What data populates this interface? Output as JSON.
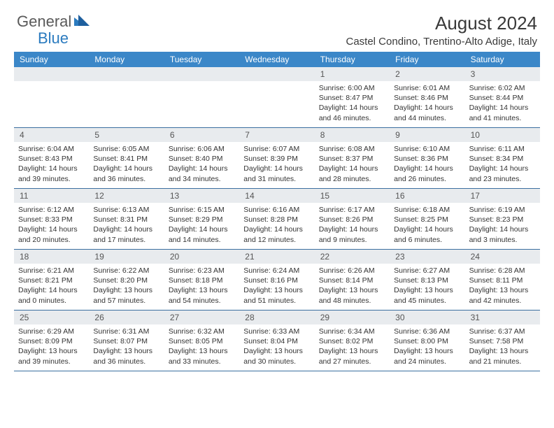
{
  "logo": {
    "text1": "General",
    "text2": "Blue"
  },
  "title": "August 2024",
  "location": "Castel Condino, Trentino-Alto Adige, Italy",
  "colors": {
    "header_bg": "#3b87c8",
    "date_bg": "#e8ebee",
    "week_border": "#3b6fa0"
  },
  "dayNames": [
    "Sunday",
    "Monday",
    "Tuesday",
    "Wednesday",
    "Thursday",
    "Friday",
    "Saturday"
  ],
  "weeks": [
    [
      null,
      null,
      null,
      null,
      {
        "d": "1",
        "sr": "Sunrise: 6:00 AM",
        "ss": "Sunset: 8:47 PM",
        "dl": "Daylight: 14 hours and 46 minutes."
      },
      {
        "d": "2",
        "sr": "Sunrise: 6:01 AM",
        "ss": "Sunset: 8:46 PM",
        "dl": "Daylight: 14 hours and 44 minutes."
      },
      {
        "d": "3",
        "sr": "Sunrise: 6:02 AM",
        "ss": "Sunset: 8:44 PM",
        "dl": "Daylight: 14 hours and 41 minutes."
      }
    ],
    [
      {
        "d": "4",
        "sr": "Sunrise: 6:04 AM",
        "ss": "Sunset: 8:43 PM",
        "dl": "Daylight: 14 hours and 39 minutes."
      },
      {
        "d": "5",
        "sr": "Sunrise: 6:05 AM",
        "ss": "Sunset: 8:41 PM",
        "dl": "Daylight: 14 hours and 36 minutes."
      },
      {
        "d": "6",
        "sr": "Sunrise: 6:06 AM",
        "ss": "Sunset: 8:40 PM",
        "dl": "Daylight: 14 hours and 34 minutes."
      },
      {
        "d": "7",
        "sr": "Sunrise: 6:07 AM",
        "ss": "Sunset: 8:39 PM",
        "dl": "Daylight: 14 hours and 31 minutes."
      },
      {
        "d": "8",
        "sr": "Sunrise: 6:08 AM",
        "ss": "Sunset: 8:37 PM",
        "dl": "Daylight: 14 hours and 28 minutes."
      },
      {
        "d": "9",
        "sr": "Sunrise: 6:10 AM",
        "ss": "Sunset: 8:36 PM",
        "dl": "Daylight: 14 hours and 26 minutes."
      },
      {
        "d": "10",
        "sr": "Sunrise: 6:11 AM",
        "ss": "Sunset: 8:34 PM",
        "dl": "Daylight: 14 hours and 23 minutes."
      }
    ],
    [
      {
        "d": "11",
        "sr": "Sunrise: 6:12 AM",
        "ss": "Sunset: 8:33 PM",
        "dl": "Daylight: 14 hours and 20 minutes."
      },
      {
        "d": "12",
        "sr": "Sunrise: 6:13 AM",
        "ss": "Sunset: 8:31 PM",
        "dl": "Daylight: 14 hours and 17 minutes."
      },
      {
        "d": "13",
        "sr": "Sunrise: 6:15 AM",
        "ss": "Sunset: 8:29 PM",
        "dl": "Daylight: 14 hours and 14 minutes."
      },
      {
        "d": "14",
        "sr": "Sunrise: 6:16 AM",
        "ss": "Sunset: 8:28 PM",
        "dl": "Daylight: 14 hours and 12 minutes."
      },
      {
        "d": "15",
        "sr": "Sunrise: 6:17 AM",
        "ss": "Sunset: 8:26 PM",
        "dl": "Daylight: 14 hours and 9 minutes."
      },
      {
        "d": "16",
        "sr": "Sunrise: 6:18 AM",
        "ss": "Sunset: 8:25 PM",
        "dl": "Daylight: 14 hours and 6 minutes."
      },
      {
        "d": "17",
        "sr": "Sunrise: 6:19 AM",
        "ss": "Sunset: 8:23 PM",
        "dl": "Daylight: 14 hours and 3 minutes."
      }
    ],
    [
      {
        "d": "18",
        "sr": "Sunrise: 6:21 AM",
        "ss": "Sunset: 8:21 PM",
        "dl": "Daylight: 14 hours and 0 minutes."
      },
      {
        "d": "19",
        "sr": "Sunrise: 6:22 AM",
        "ss": "Sunset: 8:20 PM",
        "dl": "Daylight: 13 hours and 57 minutes."
      },
      {
        "d": "20",
        "sr": "Sunrise: 6:23 AM",
        "ss": "Sunset: 8:18 PM",
        "dl": "Daylight: 13 hours and 54 minutes."
      },
      {
        "d": "21",
        "sr": "Sunrise: 6:24 AM",
        "ss": "Sunset: 8:16 PM",
        "dl": "Daylight: 13 hours and 51 minutes."
      },
      {
        "d": "22",
        "sr": "Sunrise: 6:26 AM",
        "ss": "Sunset: 8:14 PM",
        "dl": "Daylight: 13 hours and 48 minutes."
      },
      {
        "d": "23",
        "sr": "Sunrise: 6:27 AM",
        "ss": "Sunset: 8:13 PM",
        "dl": "Daylight: 13 hours and 45 minutes."
      },
      {
        "d": "24",
        "sr": "Sunrise: 6:28 AM",
        "ss": "Sunset: 8:11 PM",
        "dl": "Daylight: 13 hours and 42 minutes."
      }
    ],
    [
      {
        "d": "25",
        "sr": "Sunrise: 6:29 AM",
        "ss": "Sunset: 8:09 PM",
        "dl": "Daylight: 13 hours and 39 minutes."
      },
      {
        "d": "26",
        "sr": "Sunrise: 6:31 AM",
        "ss": "Sunset: 8:07 PM",
        "dl": "Daylight: 13 hours and 36 minutes."
      },
      {
        "d": "27",
        "sr": "Sunrise: 6:32 AM",
        "ss": "Sunset: 8:05 PM",
        "dl": "Daylight: 13 hours and 33 minutes."
      },
      {
        "d": "28",
        "sr": "Sunrise: 6:33 AM",
        "ss": "Sunset: 8:04 PM",
        "dl": "Daylight: 13 hours and 30 minutes."
      },
      {
        "d": "29",
        "sr": "Sunrise: 6:34 AM",
        "ss": "Sunset: 8:02 PM",
        "dl": "Daylight: 13 hours and 27 minutes."
      },
      {
        "d": "30",
        "sr": "Sunrise: 6:36 AM",
        "ss": "Sunset: 8:00 PM",
        "dl": "Daylight: 13 hours and 24 minutes."
      },
      {
        "d": "31",
        "sr": "Sunrise: 6:37 AM",
        "ss": "Sunset: 7:58 PM",
        "dl": "Daylight: 13 hours and 21 minutes."
      }
    ]
  ]
}
